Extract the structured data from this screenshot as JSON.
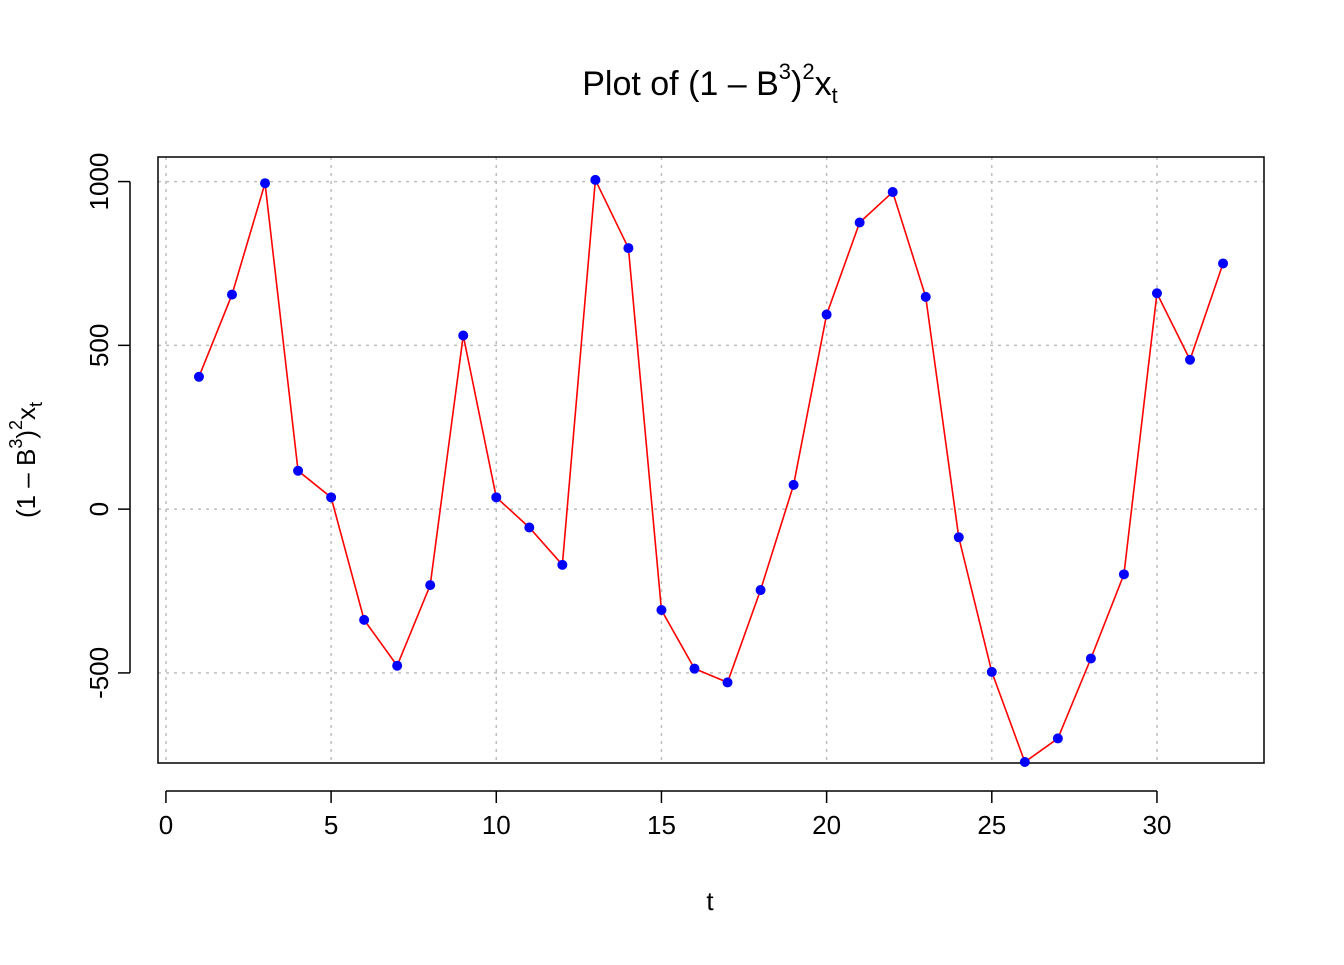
{
  "chart_data": {
    "type": "line",
    "title": "Plot of (1 – B³)²xₜ",
    "title_parts": {
      "lead": "Plot of ",
      "open": "(1 – B",
      "exp1": "3",
      "close": ")",
      "exp2": "2",
      "var": "x",
      "sub": "t"
    },
    "xlabel": "t",
    "ylabel": "(1 – B³)²xₜ",
    "ylabel_parts": {
      "open": "(1 – B",
      "exp1": "3",
      "close": ")",
      "exp2": "2",
      "var": "x",
      "sub": "t"
    },
    "x_ticks": [
      "0",
      "5",
      "10",
      "15",
      "20",
      "25",
      "30"
    ],
    "y_ticks": [
      "-500",
      "0",
      "500",
      "1000"
    ],
    "xlim": [
      -0.24,
      33.24
    ],
    "ylim": [
      -775,
      1075
    ],
    "grid": true,
    "line_color": "#FF0000",
    "point_color": "#0000FF",
    "grid_color": "#BEBEBE",
    "series": [
      {
        "x": [
          1,
          2,
          3,
          4,
          5,
          6,
          7,
          8,
          9,
          10,
          11,
          12,
          13,
          14,
          15,
          16,
          17,
          18,
          19,
          20,
          21,
          22,
          23,
          24,
          25,
          26,
          27,
          28,
          29,
          30,
          31,
          32
        ],
        "values": [
          404,
          655,
          995,
          117,
          36,
          -338,
          -478,
          -232,
          530,
          36,
          -56,
          -170,
          1005,
          797,
          -308,
          -487,
          -529,
          -247,
          74,
          594,
          875,
          968,
          648,
          -86,
          -497,
          -772,
          -700,
          -456,
          -199,
          659,
          456,
          750
        ]
      }
    ]
  }
}
